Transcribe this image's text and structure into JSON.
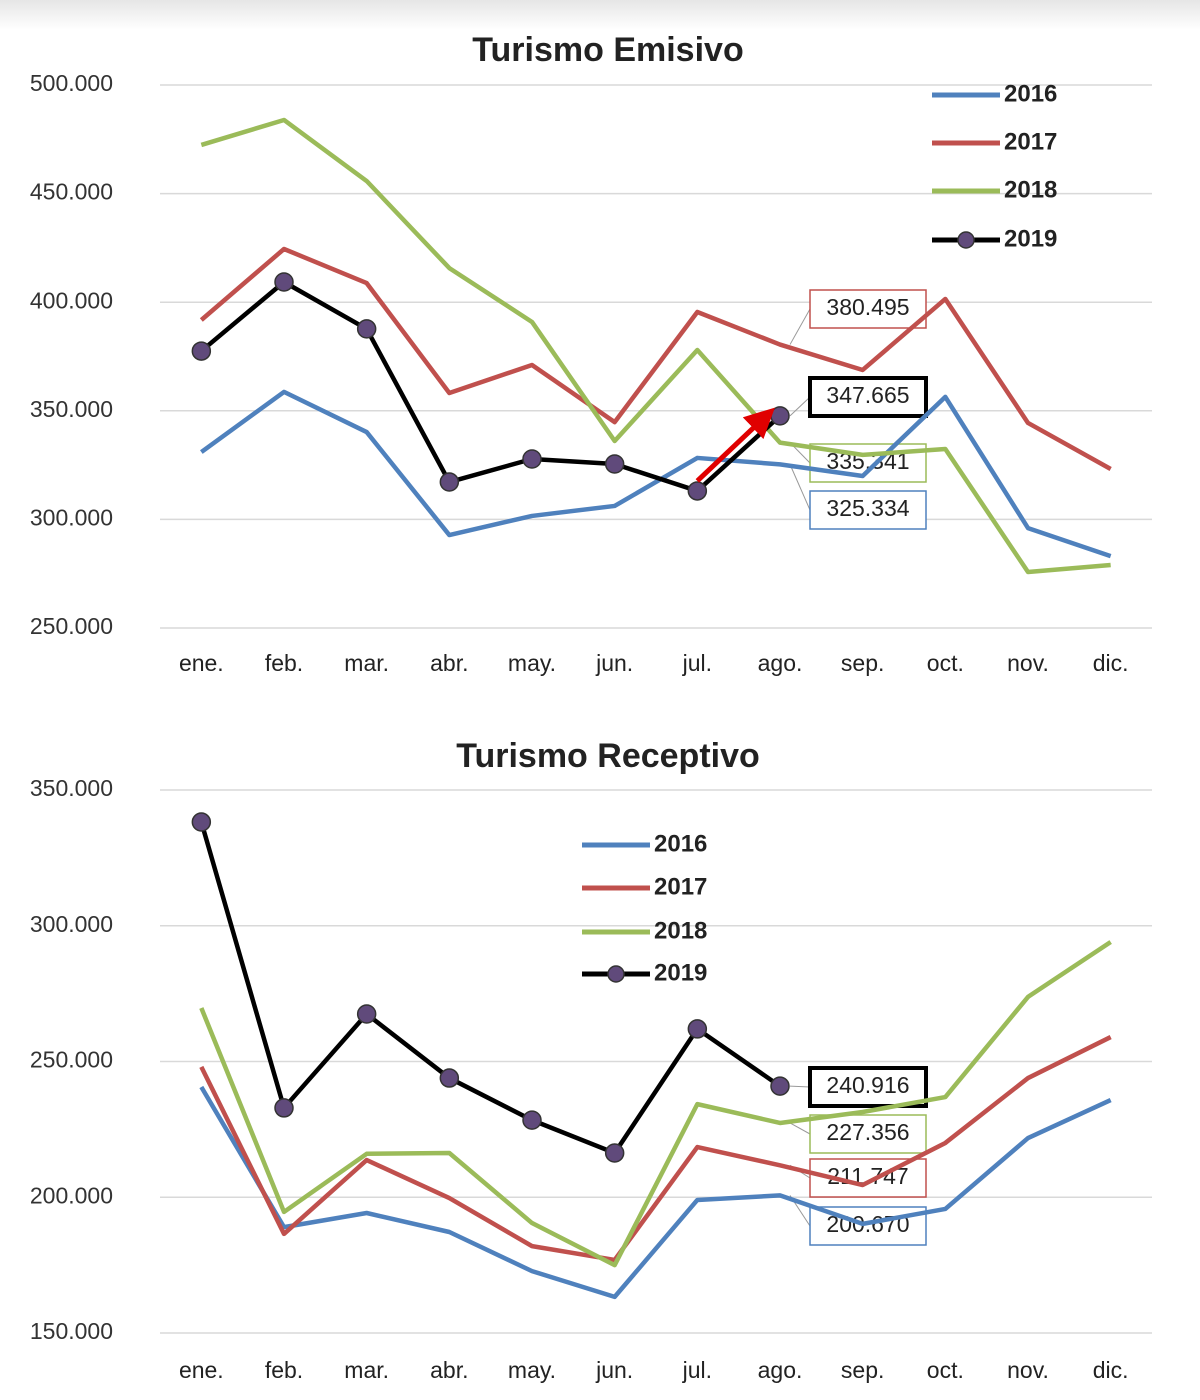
{
  "chart_data": [
    {
      "type": "line",
      "title": "Turismo Emisivo",
      "categories": [
        "ene.",
        "feb.",
        "mar.",
        "abr.",
        "may.",
        "jun.",
        "jul.",
        "ago.",
        "sep.",
        "oct.",
        "nov.",
        "dic."
      ],
      "ylim": [
        250000,
        500000
      ],
      "yticks": [
        {
          "value": 250000,
          "label": "250.000"
        },
        {
          "value": 300000,
          "label": "300.000"
        },
        {
          "value": 350000,
          "label": "350.000"
        },
        {
          "value": 400000,
          "label": "400.000"
        },
        {
          "value": 450000,
          "label": "450.000"
        },
        {
          "value": 500000,
          "label": "500.000"
        }
      ],
      "grid": true,
      "legend": "upper right",
      "series": [
        {
          "name": "2016",
          "color": "#4f81bd",
          "values": [
            331000,
            358700,
            340200,
            292800,
            301600,
            306200,
            328300,
            325334,
            320000,
            356400,
            296000,
            283100
          ],
          "value_labels": [
            null,
            null,
            null,
            null,
            null,
            null,
            null,
            "325.334",
            null,
            null,
            null,
            null
          ]
        },
        {
          "name": "2017",
          "color": "#c0504d",
          "values": [
            391800,
            424500,
            408800,
            358200,
            371100,
            344800,
            395500,
            380495,
            368800,
            401500,
            344400,
            323200
          ],
          "value_labels": [
            null,
            null,
            null,
            null,
            null,
            null,
            null,
            "380.495",
            null,
            null,
            null,
            null
          ]
        },
        {
          "name": "2018",
          "color": "#9bbb59",
          "values": [
            472400,
            483900,
            455800,
            415700,
            390900,
            336100,
            378000,
            335341,
            329700,
            332400,
            275800,
            279000
          ],
          "value_labels": [
            null,
            null,
            null,
            null,
            null,
            null,
            null,
            "335.341",
            null,
            null,
            null,
            null
          ]
        },
        {
          "name": "2019",
          "color": "#000000",
          "marker_color": "#604a7b",
          "markers": true,
          "values": [
            377500,
            409300,
            387700,
            317200,
            327800,
            325500,
            313100,
            347665,
            null,
            null,
            null,
            null
          ],
          "value_labels": [
            null,
            null,
            null,
            null,
            null,
            null,
            null,
            "347.665",
            null,
            null,
            null,
            null
          ]
        }
      ]
    },
    {
      "type": "line",
      "title": "Turismo Receptivo",
      "categories": [
        "ene.",
        "feb.",
        "mar.",
        "abr.",
        "may.",
        "jun.",
        "jul.",
        "ago.",
        "sep.",
        "oct.",
        "nov.",
        "dic."
      ],
      "ylim": [
        150000,
        350000
      ],
      "yticks": [
        {
          "value": 150000,
          "label": "150.000"
        },
        {
          "value": 200000,
          "label": "200.000"
        },
        {
          "value": 250000,
          "label": "250.000"
        },
        {
          "value": 300000,
          "label": "300.000"
        },
        {
          "value": 350000,
          "label": "350.000"
        }
      ],
      "grid": true,
      "legend": "upper center",
      "series": [
        {
          "name": "2016",
          "color": "#4f81bd",
          "values": [
            240600,
            189000,
            194200,
            187200,
            172800,
            163300,
            199000,
            200670,
            190200,
            195700,
            221800,
            235800
          ],
          "value_labels": [
            null,
            null,
            null,
            null,
            null,
            null,
            null,
            "200.670",
            null,
            null,
            null,
            null
          ]
        },
        {
          "name": "2017",
          "color": "#c0504d",
          "values": [
            248000,
            186500,
            213700,
            199700,
            182000,
            176900,
            218500,
            211747,
            204500,
            220000,
            243900,
            259000
          ],
          "value_labels": [
            null,
            null,
            null,
            null,
            null,
            null,
            null,
            "211.747",
            null,
            null,
            null,
            null
          ]
        },
        {
          "name": "2018",
          "color": "#9bbb59",
          "values": [
            269700,
            194600,
            216000,
            216300,
            190500,
            175000,
            234300,
            227356,
            231400,
            236900,
            273800,
            294000
          ],
          "value_labels": [
            null,
            null,
            null,
            null,
            null,
            null,
            null,
            "227.356",
            null,
            null,
            null,
            null
          ]
        },
        {
          "name": "2019",
          "color": "#000000",
          "marker_color": "#604a7b",
          "markers": true,
          "values": [
            338200,
            232900,
            267500,
            243900,
            228400,
            216300,
            262000,
            240916,
            null,
            null,
            null,
            null
          ],
          "value_labels": [
            null,
            null,
            null,
            null,
            null,
            null,
            null,
            "240.916",
            null,
            null,
            null,
            null
          ]
        }
      ]
    }
  ]
}
